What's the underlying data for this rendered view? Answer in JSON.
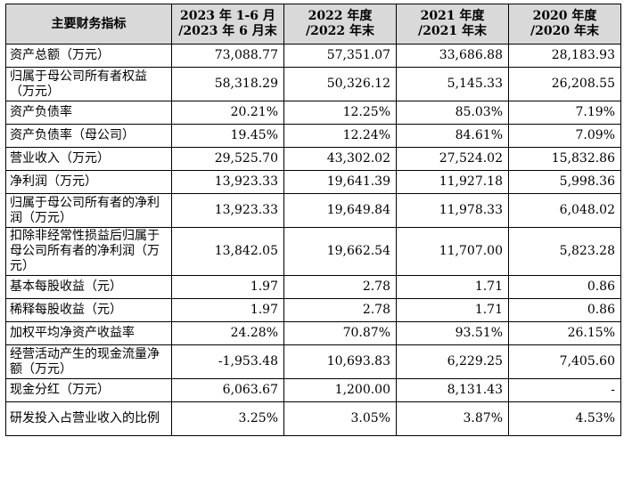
{
  "table": {
    "headers": [
      "主要财务指标",
      "2023 年 1-6 月\n/2023 年 6 月末",
      "2022 年度\n/2022 年末",
      "2021 年度\n/2021 年末",
      "2020 年度\n/2020 年末"
    ],
    "rows": [
      {
        "label": "资产总额（万元）",
        "values": [
          "73,088.77",
          "57,351.07",
          "33,686.88",
          "28,183.93"
        ]
      },
      {
        "label": "归属于母公司所有者权益（万元）",
        "values": [
          "58,318.29",
          "50,326.12",
          "5,145.33",
          "26,208.55"
        ]
      },
      {
        "label": "资产负债率",
        "values": [
          "20.21%",
          "12.25%",
          "85.03%",
          "7.19%"
        ]
      },
      {
        "label": "资产负债率（母公司）",
        "values": [
          "19.45%",
          "12.24%",
          "84.61%",
          "7.09%"
        ]
      },
      {
        "label": "营业收入（万元）",
        "values": [
          "29,525.70",
          "43,302.02",
          "27,524.02",
          "15,832.86"
        ]
      },
      {
        "label": "净利润（万元）",
        "values": [
          "13,923.33",
          "19,641.39",
          "11,927.18",
          "5,998.36"
        ]
      },
      {
        "label": "归属于母公司所有者的净利润（万元）",
        "values": [
          "13,923.33",
          "19,649.84",
          "11,978.33",
          "6,048.02"
        ]
      },
      {
        "label": "扣除非经常性损益后归属于母公司所有者的净利润（万元）",
        "values": [
          "13,842.05",
          "19,662.54",
          "11,707.00",
          "5,823.28"
        ]
      },
      {
        "label": "基本每股收益（元）",
        "values": [
          "1.97",
          "2.78",
          "1.71",
          "0.86"
        ]
      },
      {
        "label": "稀释每股收益（元）",
        "values": [
          "1.97",
          "2.78",
          "1.71",
          "0.86"
        ]
      },
      {
        "label": "加权平均净资产收益率",
        "values": [
          "24.28%",
          "70.87%",
          "93.51%",
          "26.15%"
        ]
      },
      {
        "label": "经营活动产生的现金流量净额（万元）",
        "values": [
          "-1,953.48",
          "10,693.83",
          "6,229.25",
          "7,405.60"
        ]
      },
      {
        "label": "现金分红（万元）",
        "values": [
          "6,063.67",
          "1,200.00",
          "8,131.43",
          "-"
        ]
      },
      {
        "label": "研发投入占营业收入的比例",
        "values": [
          "3.25%",
          "3.05%",
          "3.87%",
          "4.53%"
        ]
      }
    ]
  }
}
